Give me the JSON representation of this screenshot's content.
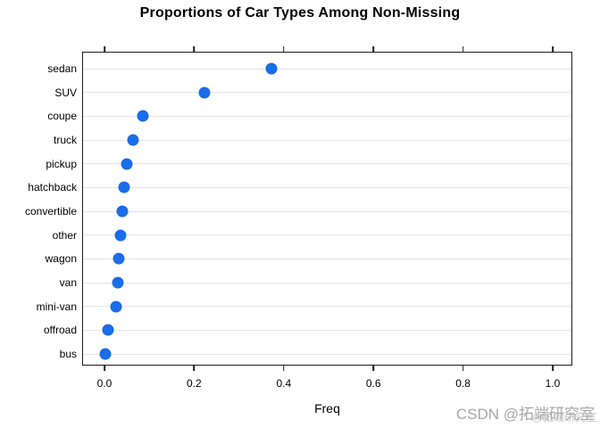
{
  "chart_data": {
    "type": "scatter",
    "subtype": "cleveland-dot-plot",
    "title": "Proportions of Car Types Among Non-Missing",
    "categories": [
      "sedan",
      "SUV",
      "coupe",
      "truck",
      "pickup",
      "hatchback",
      "convertible",
      "other",
      "wagon",
      "van",
      "mini-van",
      "offroad",
      "bus"
    ],
    "values": [
      0.372,
      0.223,
      0.086,
      0.064,
      0.049,
      0.044,
      0.039,
      0.036,
      0.032,
      0.029,
      0.026,
      0.007,
      0.002
    ],
    "xlabel": "Freq",
    "ylabel": "",
    "x_tick_labels": [
      "0.0",
      "0.2",
      "0.4",
      "0.6",
      "0.8",
      "1.0"
    ],
    "xlim": [
      -0.05,
      1.045
    ],
    "grid": "horizontal",
    "legend_position": "none",
    "dot_color": "#1a6ce8",
    "grid_color": "#e4e4e4",
    "axis_color": "#1c1c1c"
  },
  "watermark": {
    "text": "CSDN @拓端研究室",
    "ghost_text": "@拓端研究室"
  }
}
